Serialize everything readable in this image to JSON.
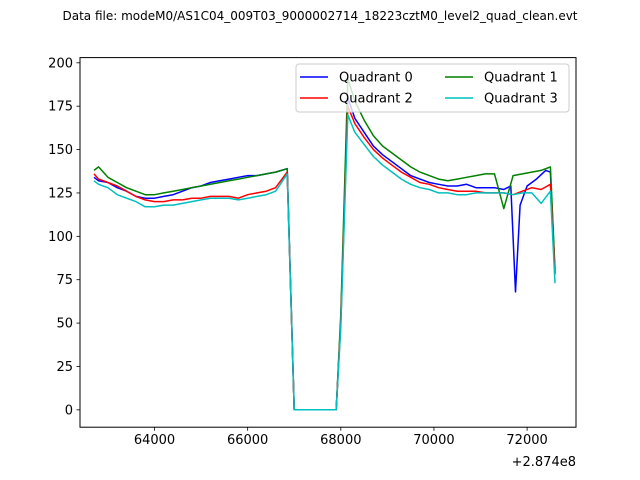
{
  "chart_data": {
    "type": "line",
    "title": "Data file: modeM0/AS1C04_009T03_9000002714_18223cztM0_level2_quad_clean.evt",
    "xlabel": "",
    "ylabel": "",
    "x_offset_label": "+2.874e8",
    "xlim": [
      62400,
      73050
    ],
    "ylim": [
      -10,
      203
    ],
    "x_ticks": [
      64000,
      66000,
      68000,
      70000,
      72000
    ],
    "x_tick_labels": [
      "64000",
      "66000",
      "68000",
      "70000",
      "72000"
    ],
    "y_ticks": [
      0,
      25,
      50,
      75,
      100,
      125,
      150,
      175,
      200
    ],
    "y_tick_labels": [
      "0",
      "25",
      "50",
      "75",
      "100",
      "125",
      "150",
      "175",
      "200"
    ],
    "grid": false,
    "legend": {
      "placement": "top-right",
      "columns": 2
    },
    "series": [
      {
        "name": "Quadrant 0",
        "color": "#0000ff",
        "x": [
          62700,
          62800,
          63000,
          63200,
          63400,
          63600,
          63800,
          64000,
          64200,
          64400,
          64600,
          64800,
          65000,
          65200,
          65400,
          65600,
          65800,
          66000,
          66200,
          66400,
          66600,
          66850,
          67000,
          67900,
          68000,
          68150,
          68300,
          68500,
          68700,
          68900,
          69100,
          69300,
          69500,
          69700,
          69900,
          70100,
          70300,
          70500,
          70700,
          70900,
          71100,
          71300,
          71500,
          71650,
          71750,
          71850,
          72000,
          72200,
          72400,
          72500,
          72600
        ],
        "y": [
          134,
          132,
          131,
          128,
          126,
          123,
          122,
          122,
          123,
          124,
          126,
          128,
          129,
          131,
          132,
          133,
          134,
          135,
          135,
          136,
          137,
          139,
          0,
          0,
          52,
          180,
          168,
          160,
          152,
          147,
          143,
          139,
          135,
          133,
          131,
          130,
          129,
          129,
          130,
          128,
          128,
          128,
          127,
          129,
          68,
          118,
          129,
          133,
          138,
          137,
          79
        ]
      },
      {
        "name": "Quadrant 1",
        "color": "#008000",
        "x": [
          62700,
          62800,
          63000,
          63200,
          63400,
          63600,
          63800,
          64000,
          64200,
          64400,
          64600,
          64800,
          65000,
          65200,
          65400,
          65600,
          65800,
          66000,
          66200,
          66400,
          66600,
          66850,
          67000,
          67900,
          68000,
          68150,
          68300,
          68500,
          68700,
          68900,
          69100,
          69300,
          69500,
          69700,
          69900,
          70100,
          70300,
          70500,
          70700,
          70900,
          71100,
          71300,
          71500,
          71700,
          71900,
          72100,
          72300,
          72500,
          72600
        ],
        "y": [
          138,
          140,
          134,
          131,
          128,
          126,
          124,
          124,
          125,
          126,
          127,
          128,
          129,
          130,
          131,
          132,
          133,
          134,
          135,
          136,
          137,
          139,
          0,
          0,
          55,
          191,
          178,
          167,
          158,
          152,
          148,
          144,
          140,
          137,
          135,
          133,
          132,
          133,
          134,
          135,
          136,
          136,
          116,
          135,
          136,
          137,
          138,
          140,
          81
        ]
      },
      {
        "name": "Quadrant 2",
        "color": "#ff0000",
        "x": [
          62700,
          62800,
          63000,
          63200,
          63400,
          63600,
          63800,
          64000,
          64200,
          64400,
          64600,
          64800,
          65000,
          65200,
          65400,
          65600,
          65800,
          66000,
          66200,
          66400,
          66600,
          66850,
          67000,
          67900,
          68000,
          68150,
          68300,
          68500,
          68700,
          68900,
          69100,
          69300,
          69500,
          69700,
          69900,
          70100,
          70300,
          70500,
          70700,
          70900,
          71100,
          71300,
          71500,
          71700,
          71900,
          72100,
          72300,
          72500,
          72600
        ],
        "y": [
          136,
          133,
          131,
          129,
          126,
          123,
          121,
          120,
          120,
          121,
          121,
          122,
          122,
          123,
          123,
          123,
          122,
          124,
          125,
          126,
          128,
          137,
          0,
          0,
          50,
          175,
          165,
          157,
          150,
          145,
          141,
          137,
          134,
          131,
          130,
          128,
          127,
          126,
          126,
          126,
          125,
          125,
          125,
          124,
          126,
          128,
          127,
          130,
          78
        ]
      },
      {
        "name": "Quadrant 3",
        "color": "#00bfbf",
        "x": [
          62700,
          62800,
          63000,
          63200,
          63400,
          63600,
          63800,
          64000,
          64200,
          64400,
          64600,
          64800,
          65000,
          65200,
          65400,
          65600,
          65800,
          66000,
          66200,
          66400,
          66600,
          66850,
          67000,
          67900,
          68000,
          68150,
          68300,
          68500,
          68700,
          68900,
          69100,
          69300,
          69500,
          69700,
          69900,
          70100,
          70300,
          70500,
          70700,
          70900,
          71100,
          71300,
          71500,
          71700,
          71900,
          72100,
          72300,
          72500,
          72600
        ],
        "y": [
          132,
          130,
          128,
          124,
          122,
          120,
          117,
          117,
          118,
          118,
          119,
          120,
          121,
          122,
          122,
          122,
          121,
          122,
          123,
          124,
          126,
          136,
          0,
          0,
          48,
          170,
          160,
          153,
          146,
          141,
          137,
          133,
          130,
          128,
          127,
          125,
          125,
          124,
          124,
          125,
          125,
          125,
          125,
          124,
          125,
          125,
          119,
          126,
          73
        ]
      }
    ]
  }
}
